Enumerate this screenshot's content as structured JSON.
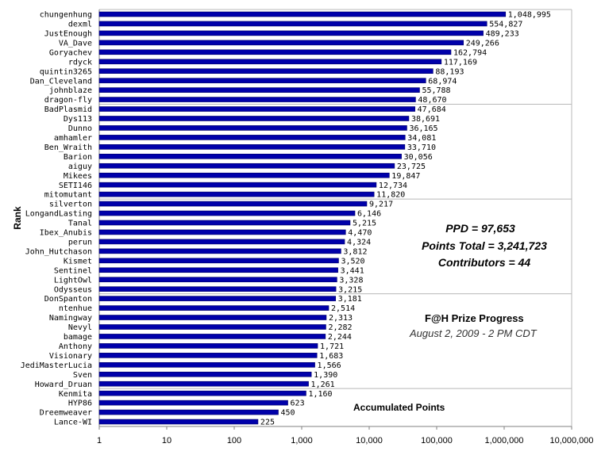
{
  "chart_data": {
    "type": "bar",
    "orientation": "horizontal",
    "scale": "log",
    "xlim": [
      1,
      10000000
    ],
    "ylabel": "Rank",
    "xlabel": "Accumulated Points",
    "title": "F@H Prize Progress",
    "subtitle": "August 2, 2009 - 2 PM CDT",
    "categories": [
      "chungenhung",
      "dexml",
      "JustEnough",
      "VA_Dave",
      "Goryachev",
      "rdyck",
      "quintin3265",
      "Dan_Cleveland",
      "johnblaze",
      "dragon-fly",
      "BadPlasmid",
      "Dys113",
      "Dunno",
      "amhamler",
      "Ben_Wraith",
      "Barion",
      "aiguy",
      "Mikees",
      "SETI146",
      "mitomutant",
      "silverton",
      "LongandLasting",
      "Tanal",
      "Ibex_Anubis",
      "perun",
      "John_Hutchason",
      "Kismet",
      "Sentinel",
      "LightOwl",
      "Odysseus",
      "DonSpanton",
      "ntenhue",
      "Namingway",
      "Nevyl",
      "bamage",
      "Anthony",
      "Visionary",
      "JediMasterLucia",
      "Sven",
      "Howard_Druan",
      "Kenmita",
      "HYP86",
      "Dreemweaver",
      "Lance-WI"
    ],
    "values": [
      1048995,
      554827,
      489233,
      249266,
      162794,
      117169,
      88193,
      68974,
      55788,
      48670,
      47684,
      38691,
      36165,
      34081,
      33710,
      30056,
      23725,
      19847,
      12734,
      11820,
      9217,
      6146,
      5215,
      4470,
      4324,
      3812,
      3520,
      3441,
      3328,
      3215,
      3181,
      2514,
      2313,
      2282,
      2244,
      1721,
      1683,
      1566,
      1390,
      1261,
      1160,
      623,
      450,
      225
    ],
    "value_labels": [
      "1,048,995",
      "554,827",
      "489,233",
      "249,266",
      "162,794",
      "117,169",
      "88,193",
      "68,974",
      "55,788",
      "48,670",
      "47,684",
      "38,691",
      "36,165",
      "34,081",
      "33,710",
      "30,056",
      "23,725",
      "19,847",
      "12,734",
      "11,820",
      "9,217",
      "6,146",
      "5,215",
      "4,470",
      "4,324",
      "3,812",
      "3,520",
      "3,441",
      "3,328",
      "3,215",
      "3,181",
      "2,514",
      "2,313",
      "2,282",
      "2,244",
      "1,721",
      "1,683",
      "1,566",
      "1,390",
      "1,261",
      "1,160",
      "623",
      "450",
      "225"
    ],
    "ticks": [
      1,
      10,
      100,
      1000,
      10000,
      100000,
      1000000,
      10000000
    ],
    "tick_labels": [
      "1",
      "10",
      "100",
      "1,000",
      "10,000",
      "100,000",
      "1,000,000",
      "10,000,000"
    ],
    "colors": {
      "bar": "#0000aa",
      "bar_edge": "#000066",
      "grid": "#b8b8b8",
      "axis": "#808080"
    }
  },
  "stats": {
    "ppd": "PPD = 97,653",
    "points_total": "Points Total = 3,241,723",
    "contributors": "Contributors = 44"
  }
}
